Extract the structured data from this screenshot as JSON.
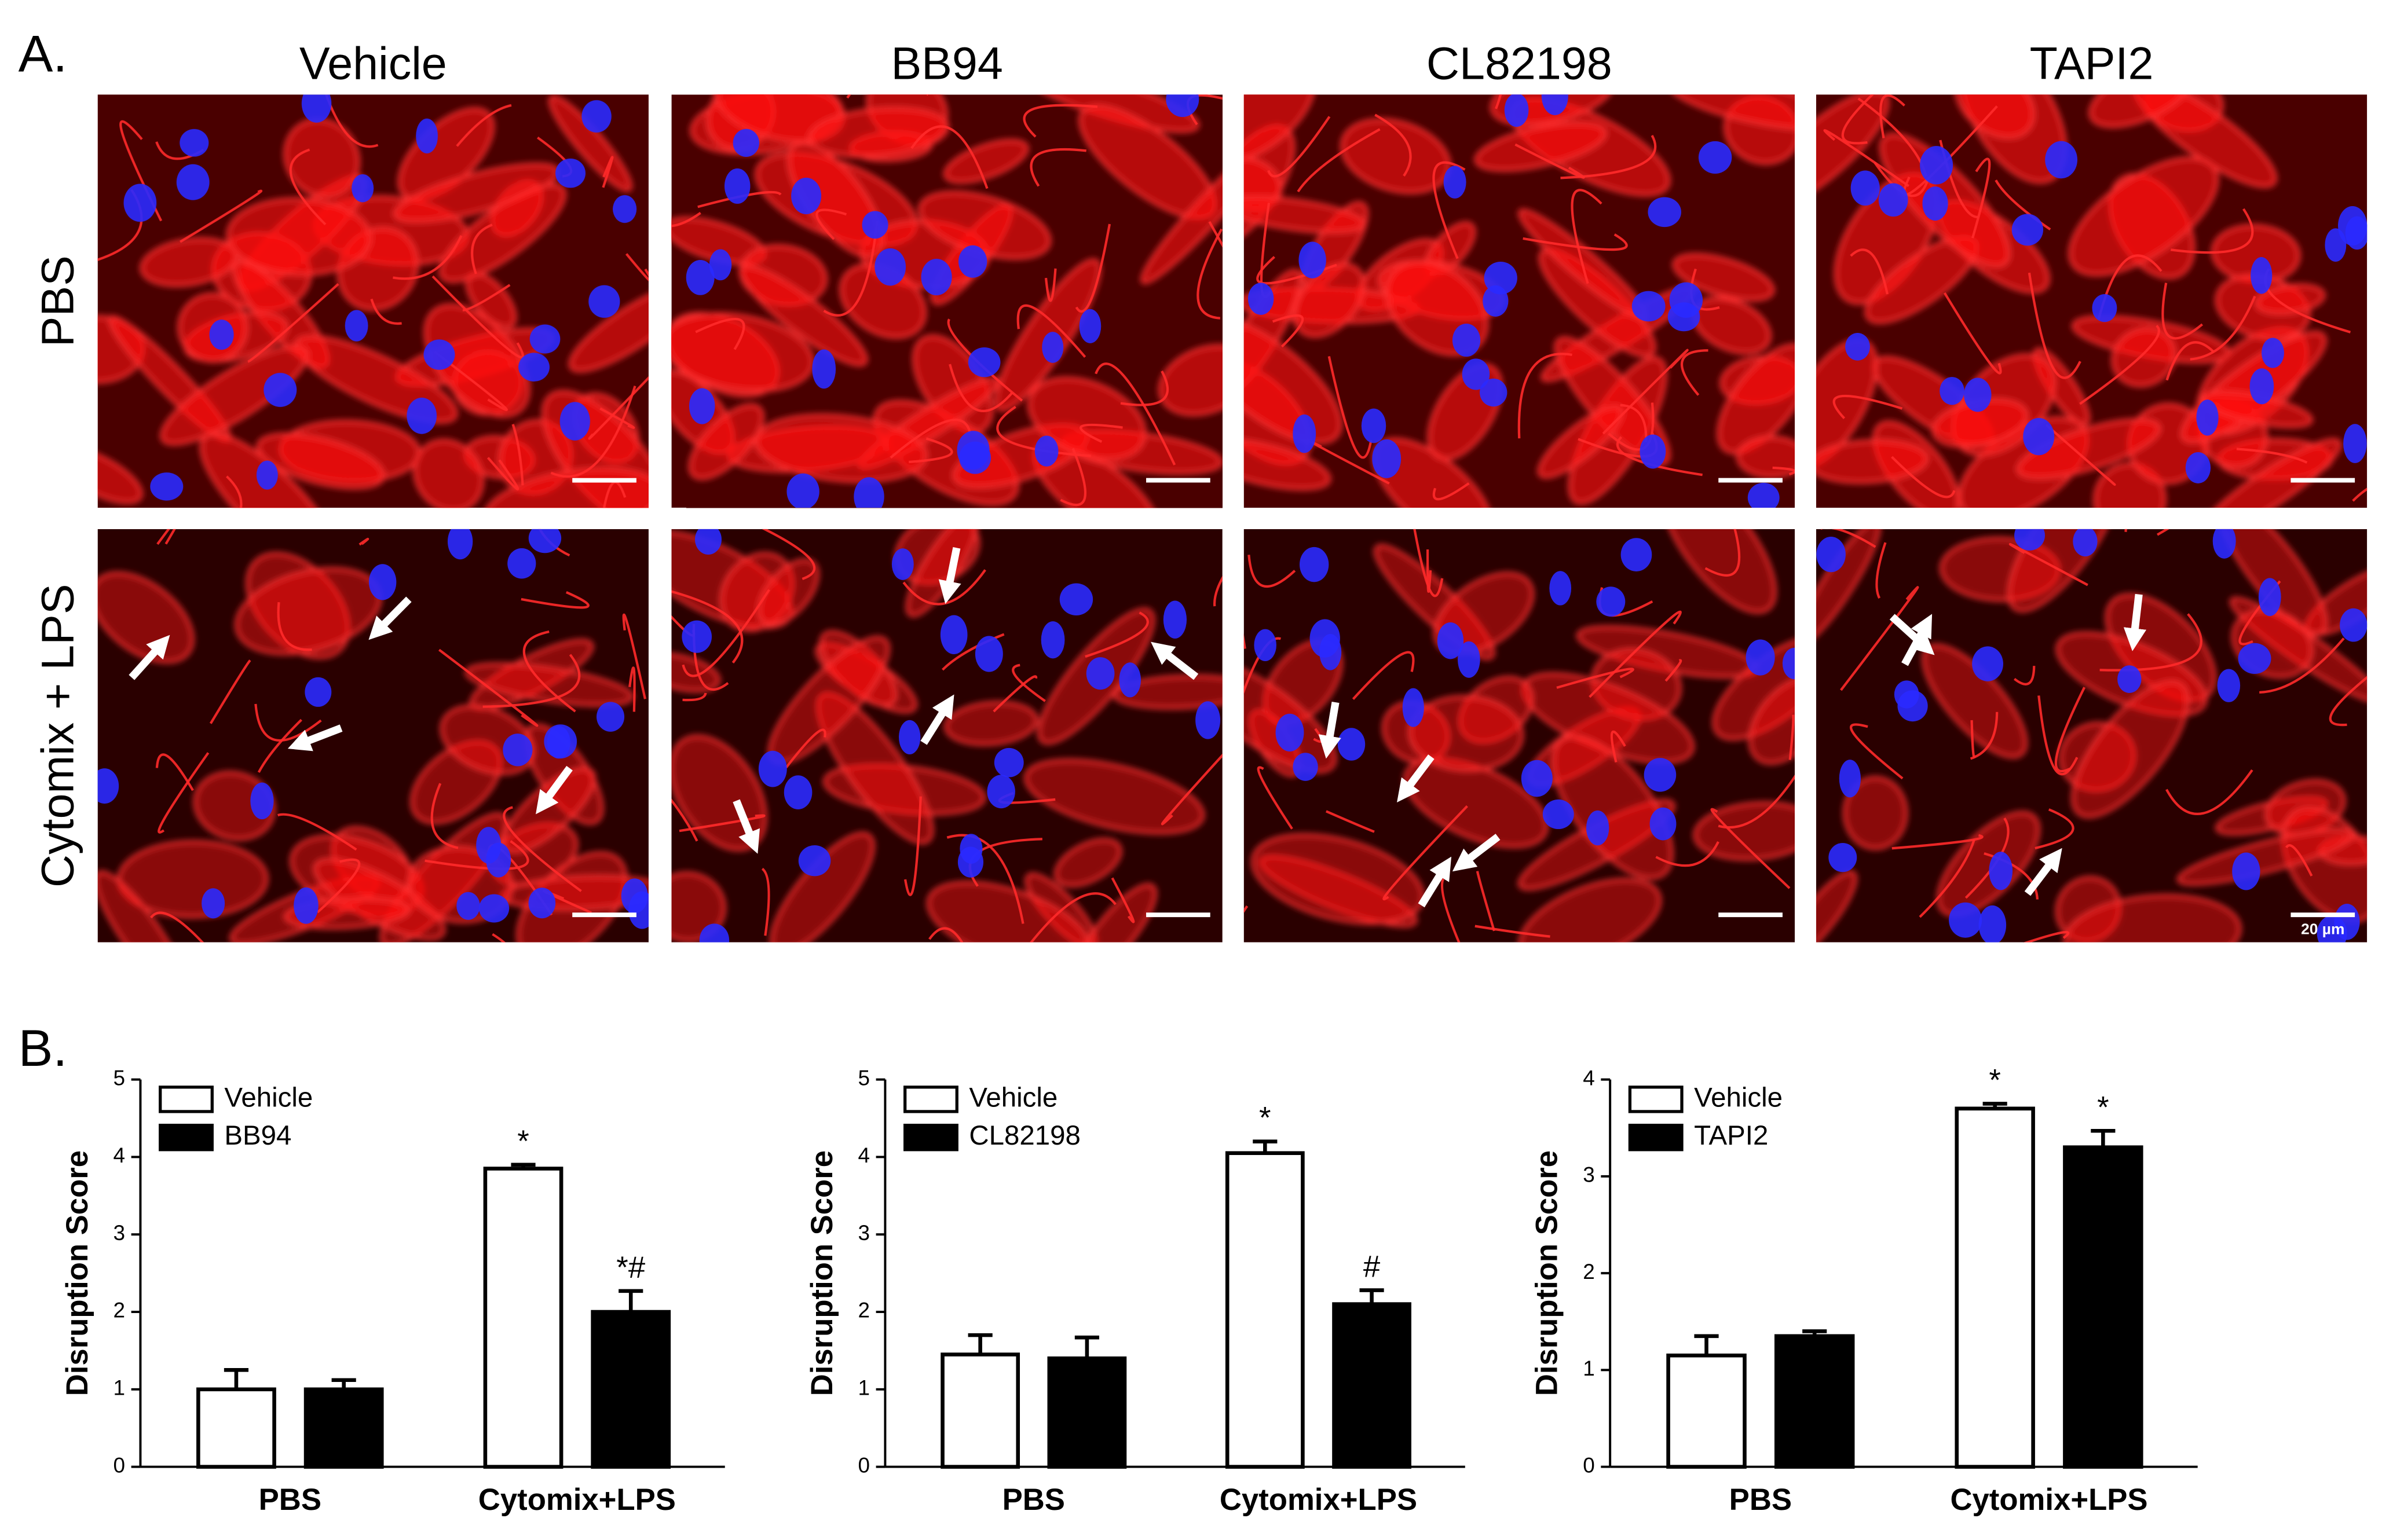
{
  "panel_a": {
    "label": "A.",
    "columns": [
      "Vehicle",
      "BB94",
      "CL82198",
      "TAPI2"
    ],
    "rows": [
      "PBS",
      "Cytomix + LPS"
    ],
    "scale_bar": "20 µm"
  },
  "panel_b": {
    "label": "B."
  },
  "chart_data": [
    {
      "type": "bar",
      "ylabel": "Disruption Score",
      "categories": [
        "PBS",
        "Cytomix+LPS"
      ],
      "series": [
        {
          "name": "Vehicle",
          "color": "#ffffff",
          "values": [
            1.0,
            3.85
          ],
          "errors": [
            0.25,
            0.05
          ],
          "annotations": [
            null,
            "*"
          ]
        },
        {
          "name": "BB94",
          "color": "#000000",
          "values": [
            1.0,
            2.0
          ],
          "errors": [
            0.12,
            0.27
          ],
          "annotations": [
            null,
            "*#"
          ]
        }
      ],
      "ylim": [
        0,
        5
      ],
      "yticks": [
        0,
        1,
        2,
        3,
        4,
        5
      ]
    },
    {
      "type": "bar",
      "ylabel": "Disruption Score",
      "categories": [
        "PBS",
        "Cytomix+LPS"
      ],
      "series": [
        {
          "name": "Vehicle",
          "color": "#ffffff",
          "values": [
            1.45,
            4.05
          ],
          "errors": [
            0.25,
            0.15
          ],
          "annotations": [
            null,
            "*"
          ]
        },
        {
          "name": "CL82198",
          "color": "#000000",
          "values": [
            1.4,
            2.1
          ],
          "errors": [
            0.27,
            0.18
          ],
          "annotations": [
            null,
            "#"
          ]
        }
      ],
      "ylim": [
        0,
        5
      ],
      "yticks": [
        0,
        1,
        2,
        3,
        4,
        5
      ]
    },
    {
      "type": "bar",
      "ylabel": "Disruption Score",
      "categories": [
        "PBS",
        "Cytomix+LPS"
      ],
      "series": [
        {
          "name": "Vehicle",
          "color": "#ffffff",
          "values": [
            1.15,
            3.7
          ],
          "errors": [
            0.2,
            0.05
          ],
          "annotations": [
            null,
            "*"
          ]
        },
        {
          "name": "TAPI2",
          "color": "#000000",
          "values": [
            1.35,
            3.3
          ],
          "errors": [
            0.05,
            0.17
          ],
          "annotations": [
            null,
            "*"
          ]
        }
      ],
      "ylim": [
        0,
        4
      ],
      "yticks": [
        0,
        1,
        2,
        3,
        4
      ]
    }
  ]
}
